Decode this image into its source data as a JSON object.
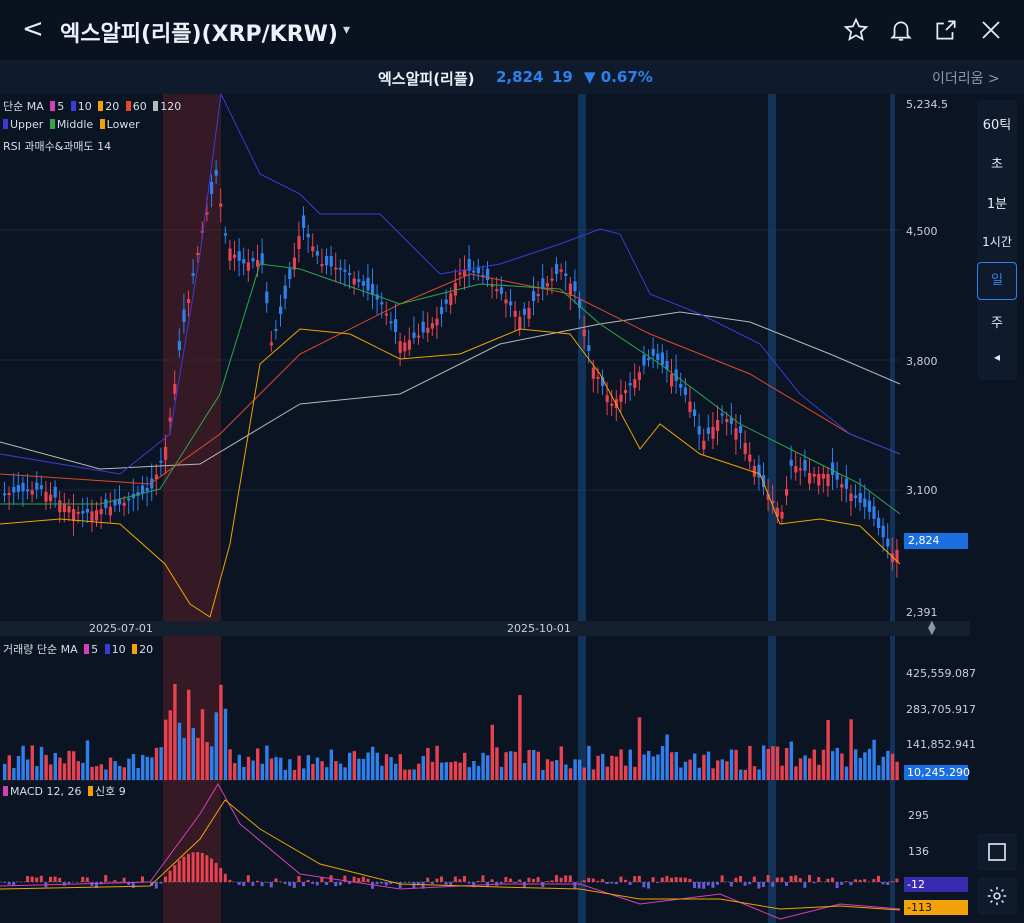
{
  "header": {
    "back_glyph": "<",
    "title": "엑스알피(리플)(XRP/KRW)",
    "caret": "▾",
    "icons": [
      "star-icon",
      "bell-icon",
      "share-icon",
      "close-icon"
    ]
  },
  "ticker": {
    "name": "엑스알피(리플)",
    "price": "2,824",
    "change": "19",
    "pct": "▼ 0.67%",
    "next": "이더리움 >"
  },
  "legends": {
    "ma": {
      "label": "단순 MA",
      "items": [
        {
          "v": "5",
          "c": "#d63fb8"
        },
        {
          "v": "10",
          "c": "#3b3bd6"
        },
        {
          "v": "20",
          "c": "#f0a400"
        },
        {
          "v": "60",
          "c": "#e24a2a"
        },
        {
          "v": "120",
          "c": "#b8b8b8"
        }
      ]
    },
    "bb": {
      "items": [
        {
          "v": "Upper",
          "c": "#3b3bd6"
        },
        {
          "v": "Middle",
          "c": "#2fa64a"
        },
        {
          "v": "Lower",
          "c": "#f0a400"
        }
      ]
    },
    "rsi": "RSI 과매수&과매도 14",
    "vol": {
      "label": "거래량 단순 MA",
      "items": [
        {
          "v": "5",
          "c": "#d63fb8"
        },
        {
          "v": "10",
          "c": "#3b3bd6"
        },
        {
          "v": "20",
          "c": "#f0a400"
        }
      ]
    },
    "macd": {
      "items": [
        {
          "v": "MACD 12, 26",
          "c": "#d63fb8"
        },
        {
          "v": "신호 9",
          "c": "#f0a400"
        }
      ]
    }
  },
  "price_axis": [
    "5,234.5",
    "4,500",
    "3,800",
    "3,100",
    "2,391"
  ],
  "price_tag": "2,824",
  "dates": [
    "2025-07-01",
    "2025-10-01"
  ],
  "volume_axis": [
    "425,559.087",
    "283,705.917",
    "141,852.941"
  ],
  "volume_tag": "10,245.290",
  "macd_axis": [
    "295",
    "136"
  ],
  "macd_tags": [
    "-12",
    "-113"
  ],
  "timeframes": [
    "60틱",
    "초",
    "1분",
    "1시간",
    "일",
    "주",
    "◂"
  ],
  "selected_timeframe": "일",
  "colors": {
    "up": "#e8414f",
    "down": "#2f80ed",
    "bg": "#0b1422",
    "accent": "#2f80ed"
  }
}
